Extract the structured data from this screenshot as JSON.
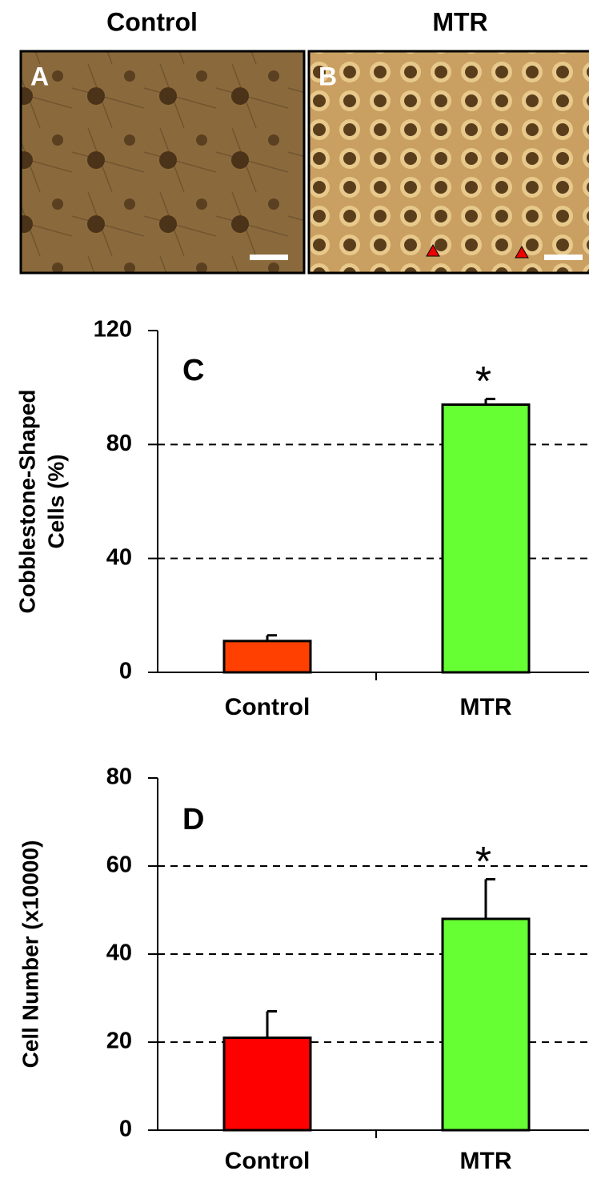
{
  "images": [
    {
      "title": "Control",
      "label": "A"
    },
    {
      "title": "MTR",
      "label": "B"
    }
  ],
  "chart_data": [
    {
      "type": "bar",
      "panel_label": "C",
      "annotation": "*",
      "ylabel": [
        "Cobblestone-Shaped",
        "Cells (%)"
      ],
      "categories": [
        "Control",
        "MTR"
      ],
      "values": [
        11,
        94
      ],
      "errors": [
        2,
        2
      ],
      "colors": [
        "#ff4000",
        "#66ff33"
      ],
      "ylim": [
        0,
        120
      ],
      "yticks": [
        0,
        40,
        80,
        120
      ],
      "grid": true
    },
    {
      "type": "bar",
      "panel_label": "D",
      "annotation": "*",
      "ylabel": [
        "Cell Number (x10000)"
      ],
      "categories": [
        "Control",
        "MTR"
      ],
      "values": [
        21,
        48
      ],
      "errors": [
        6,
        9
      ],
      "colors": [
        "#ff0000",
        "#66ff33"
      ],
      "ylim": [
        0,
        80
      ],
      "yticks": [
        0,
        20,
        40,
        60,
        80
      ],
      "grid": true
    }
  ]
}
